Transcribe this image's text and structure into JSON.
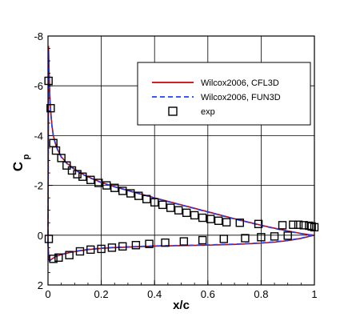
{
  "chart_data": {
    "type": "line",
    "xlabel": "x/c",
    "ylabel": "C",
    "ylabel_subscript": "p",
    "xlim": [
      0,
      1
    ],
    "ylim": [
      2,
      -8
    ],
    "y_inverted": true,
    "grid": true,
    "legend_position": "top-right",
    "xticks": [
      0,
      0.2,
      0.4,
      0.6,
      0.8,
      1
    ],
    "xtick_labels": [
      "0",
      "0.2",
      "0.4",
      "0.6",
      "0.8",
      "1"
    ],
    "yticks": [
      -8,
      -6,
      -4,
      -2,
      0,
      2
    ],
    "ytick_labels": [
      "-8",
      "-6",
      "-4",
      "-2",
      "0",
      "2"
    ],
    "series": [
      {
        "name": "Wilcox2006, CFL3D",
        "style": "solid",
        "color": "#cc0000",
        "upper": {
          "x": [
            0.0,
            0.001,
            0.002,
            0.004,
            0.007,
            0.01,
            0.015,
            0.02,
            0.03,
            0.04,
            0.05,
            0.07,
            0.1,
            0.13,
            0.16,
            0.2,
            0.25,
            0.3,
            0.35,
            0.4,
            0.45,
            0.5,
            0.55,
            0.6,
            0.65,
            0.7,
            0.75,
            0.8,
            0.85,
            0.9,
            0.95,
            0.98,
            1.0
          ],
          "y": [
            0.3,
            -3.0,
            -7.6,
            -6.6,
            -5.6,
            -5.0,
            -4.4,
            -4.0,
            -3.6,
            -3.35,
            -3.15,
            -2.9,
            -2.65,
            -2.45,
            -2.3,
            -2.12,
            -1.95,
            -1.8,
            -1.65,
            -1.5,
            -1.36,
            -1.22,
            -1.08,
            -0.94,
            -0.8,
            -0.66,
            -0.53,
            -0.4,
            -0.28,
            -0.17,
            -0.07,
            -0.02,
            0.0
          ]
        },
        "lower": {
          "x": [
            0.0,
            0.003,
            0.006,
            0.01,
            0.015,
            0.02,
            0.03,
            0.05,
            0.08,
            0.1,
            0.15,
            0.2,
            0.25,
            0.3,
            0.4,
            0.5,
            0.6,
            0.7,
            0.8,
            0.85,
            0.9,
            0.95,
            0.98,
            1.0
          ],
          "y": [
            0.3,
            0.95,
            1.05,
            1.0,
            0.95,
            0.92,
            0.85,
            0.78,
            0.7,
            0.66,
            0.58,
            0.53,
            0.5,
            0.48,
            0.44,
            0.42,
            0.4,
            0.37,
            0.32,
            0.28,
            0.22,
            0.13,
            0.05,
            0.0
          ]
        }
      },
      {
        "name": "Wilcox2006, FUN3D",
        "style": "dashed",
        "color": "#1f3fff",
        "upper": {
          "x": [
            0.0,
            0.001,
            0.002,
            0.004,
            0.007,
            0.01,
            0.015,
            0.02,
            0.03,
            0.04,
            0.05,
            0.07,
            0.1,
            0.13,
            0.16,
            0.2,
            0.25,
            0.3,
            0.35,
            0.4,
            0.45,
            0.5,
            0.55,
            0.6,
            0.65,
            0.7,
            0.75,
            0.8,
            0.85,
            0.9,
            0.95,
            0.98,
            1.0
          ],
          "y": [
            0.3,
            -2.8,
            -7.4,
            -6.5,
            -5.55,
            -4.95,
            -4.35,
            -3.98,
            -3.58,
            -3.33,
            -3.13,
            -2.88,
            -2.63,
            -2.44,
            -2.29,
            -2.11,
            -1.94,
            -1.79,
            -1.64,
            -1.49,
            -1.35,
            -1.21,
            -1.07,
            -0.93,
            -0.79,
            -0.65,
            -0.52,
            -0.39,
            -0.27,
            -0.16,
            -0.06,
            -0.01,
            0.0
          ]
        },
        "lower": {
          "x": [
            0.0,
            0.003,
            0.006,
            0.01,
            0.015,
            0.02,
            0.03,
            0.05,
            0.08,
            0.1,
            0.15,
            0.2,
            0.25,
            0.3,
            0.4,
            0.5,
            0.6,
            0.7,
            0.8,
            0.85,
            0.9,
            0.95,
            0.98,
            1.0
          ],
          "y": [
            0.3,
            0.93,
            1.03,
            0.99,
            0.94,
            0.91,
            0.84,
            0.77,
            0.69,
            0.65,
            0.57,
            0.52,
            0.49,
            0.47,
            0.43,
            0.41,
            0.39,
            0.36,
            0.31,
            0.27,
            0.21,
            0.12,
            0.04,
            0.0
          ]
        }
      },
      {
        "name": "exp",
        "style": "markers",
        "marker": "square",
        "color": "#000000",
        "x": [
          0.002,
          0.01,
          0.02,
          0.03,
          0.05,
          0.07,
          0.09,
          0.11,
          0.13,
          0.16,
          0.19,
          0.22,
          0.25,
          0.28,
          0.31,
          0.34,
          0.37,
          0.4,
          0.43,
          0.46,
          0.49,
          0.52,
          0.55,
          0.58,
          0.61,
          0.64,
          0.67,
          0.72,
          0.79,
          0.88,
          0.92,
          0.94,
          0.96,
          0.98,
          0.99,
          1.0,
          0.003,
          0.02,
          0.04,
          0.08,
          0.12,
          0.16,
          0.2,
          0.24,
          0.28,
          0.33,
          0.38,
          0.44,
          0.51,
          0.58,
          0.66,
          0.74,
          0.8,
          0.85,
          0.9
        ],
        "y": [
          -6.2,
          -5.1,
          -3.7,
          -3.4,
          -3.1,
          -2.8,
          -2.6,
          -2.45,
          -2.35,
          -2.22,
          -2.1,
          -2.0,
          -1.9,
          -1.78,
          -1.68,
          -1.58,
          -1.45,
          -1.32,
          -1.22,
          -1.1,
          -1.0,
          -0.9,
          -0.8,
          -0.7,
          -0.65,
          -0.58,
          -0.52,
          -0.5,
          -0.45,
          -0.4,
          -0.42,
          -0.42,
          -0.4,
          -0.38,
          -0.35,
          -0.32,
          0.15,
          0.95,
          0.9,
          0.8,
          0.65,
          0.58,
          0.55,
          0.5,
          0.45,
          0.4,
          0.35,
          0.3,
          0.25,
          0.2,
          0.15,
          0.12,
          0.08,
          0.05,
          0.02
        ]
      }
    ]
  }
}
